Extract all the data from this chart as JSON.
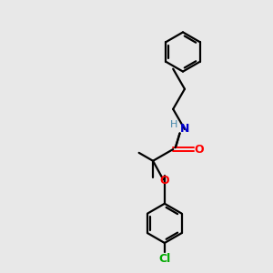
{
  "background_color": "#e8e8e8",
  "bond_color": "#000000",
  "atom_colors": {
    "O": "#ff0000",
    "N": "#0000cc",
    "Cl": "#00aa00",
    "H": "#4488aa",
    "C": "#000000"
  },
  "figsize": [
    3.0,
    3.0
  ],
  "dpi": 100
}
